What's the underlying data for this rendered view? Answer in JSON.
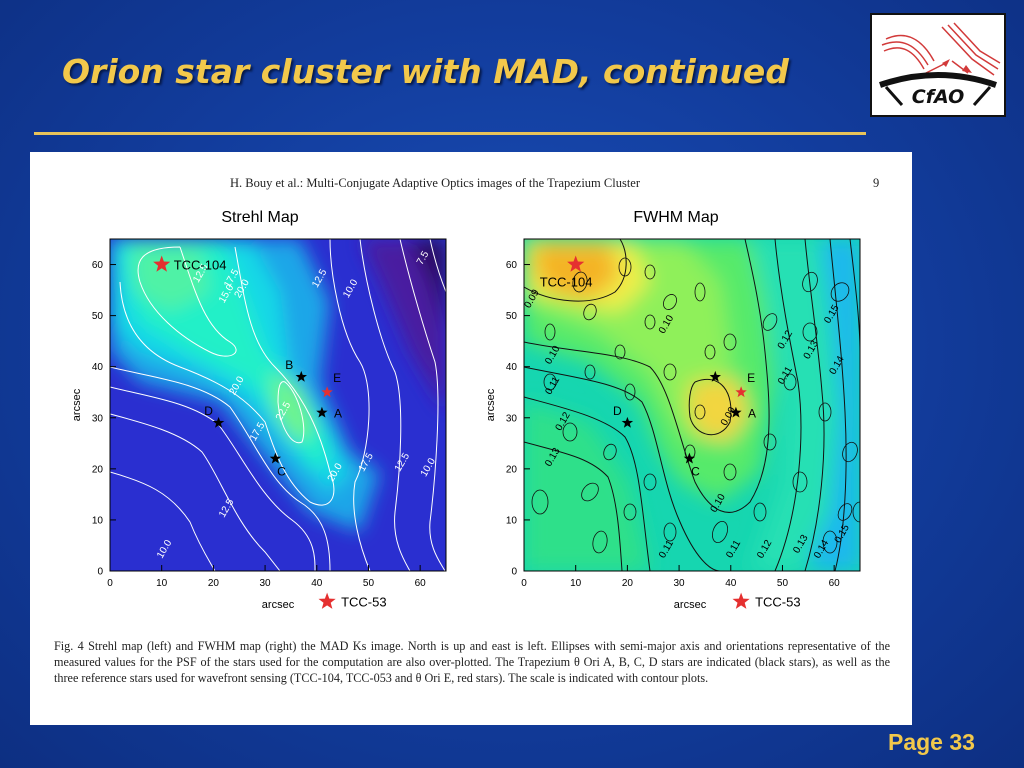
{
  "slide": {
    "title": "Orion star cluster with MAD, continued",
    "page_label": "Page 33",
    "logo_text": "CfAO",
    "title_color": "#f2c84b",
    "background_color": "#123c9c"
  },
  "figure": {
    "header": "H. Bouy et al.: Multi-Conjugate Adaptive Optics images of the Trapezium Cluster",
    "page": "9",
    "caption": "Fig. 4 Strehl map (left) and FWHM map (right) the MAD Ks image. North is up and east is left. Ellipses with semi-major axis and orientations representative of the measured values for the PSF of the stars used for the computation are also over-plotted. The Trapezium θ Ori A, B, C, D stars are indicated (black stars), as well as the three reference stars used for wavefront sensing (TCC-104, TCC-053 and θ Ori E, red stars). The scale is indicated with contour plots."
  },
  "chart_data": [
    {
      "type": "heatmap",
      "title": "Strehl Map",
      "xlabel": "arcsec",
      "ylabel": "arcsec",
      "xlim": [
        0,
        65
      ],
      "ylim": [
        0,
        65
      ],
      "xticks": [
        0,
        10,
        20,
        30,
        40,
        50,
        60
      ],
      "yticks": [
        0,
        10,
        20,
        30,
        40,
        50,
        60
      ],
      "colormap": "blue-cyan-green",
      "contour_levels": [
        {
          "label": "7.5",
          "x": 61,
          "y": 61
        },
        {
          "label": "10.0",
          "x": 47,
          "y": 55
        },
        {
          "label": "12.5",
          "x": 41,
          "y": 57
        },
        {
          "label": "15.0",
          "x": 23,
          "y": 54
        },
        {
          "label": "17.5",
          "x": 24,
          "y": 57
        },
        {
          "label": "20.0",
          "x": 26,
          "y": 55
        },
        {
          "label": "12.5",
          "x": 18,
          "y": 58
        },
        {
          "label": "20.0",
          "x": 25,
          "y": 36
        },
        {
          "label": "22.5",
          "x": 34,
          "y": 31
        },
        {
          "label": "17.5",
          "x": 29,
          "y": 27
        },
        {
          "label": "20.0",
          "x": 44,
          "y": 19
        },
        {
          "label": "17.5",
          "x": 50,
          "y": 21
        },
        {
          "label": "12.5",
          "x": 57,
          "y": 21
        },
        {
          "label": "10.0",
          "x": 62,
          "y": 20
        },
        {
          "label": "12.5",
          "x": 23,
          "y": 12
        },
        {
          "label": "10.0",
          "x": 11,
          "y": 4
        }
      ],
      "markers": [
        {
          "name": "TCC-104",
          "x": 10,
          "y": 60,
          "color": "red"
        },
        {
          "name": "B",
          "x": 37,
          "y": 38,
          "color": "black"
        },
        {
          "name": "E",
          "x": 42,
          "y": 35,
          "color": "red"
        },
        {
          "name": "A",
          "x": 41,
          "y": 31,
          "color": "black"
        },
        {
          "name": "D",
          "x": 21,
          "y": 29,
          "color": "black"
        },
        {
          "name": "C",
          "x": 32,
          "y": 22,
          "color": "black"
        },
        {
          "name": "TCC-53",
          "x": 42,
          "y": -6,
          "color": "red"
        }
      ]
    },
    {
      "type": "heatmap",
      "title": "FWHM Map",
      "xlabel": "arcsec",
      "ylabel": "arcsec",
      "xlim": [
        0,
        65
      ],
      "ylim": [
        0,
        65
      ],
      "xticks": [
        0,
        10,
        20,
        30,
        40,
        50,
        60
      ],
      "yticks": [
        0,
        10,
        20,
        30,
        40,
        50,
        60
      ],
      "colormap": "blue-green-yellow-orange",
      "contour_levels": [
        {
          "label": "0.09",
          "x": 2,
          "y": 53
        },
        {
          "label": "0.10",
          "x": 28,
          "y": 48
        },
        {
          "label": "0.10",
          "x": 6,
          "y": 42
        },
        {
          "label": "0.11",
          "x": 6,
          "y": 36
        },
        {
          "label": "0.12",
          "x": 8,
          "y": 29
        },
        {
          "label": "0.13",
          "x": 6,
          "y": 22
        },
        {
          "label": "0.12",
          "x": 51,
          "y": 45
        },
        {
          "label": "0.13",
          "x": 56,
          "y": 43
        },
        {
          "label": "0.14",
          "x": 61,
          "y": 40
        },
        {
          "label": "0.15",
          "x": 60,
          "y": 50
        },
        {
          "label": "0.11",
          "x": 51,
          "y": 38
        },
        {
          "label": "0.09",
          "x": 40,
          "y": 30
        },
        {
          "label": "0.10",
          "x": 38,
          "y": 13
        },
        {
          "label": "0.11",
          "x": 28,
          "y": 4
        },
        {
          "label": "0.11",
          "x": 41,
          "y": 4
        },
        {
          "label": "0.12",
          "x": 47,
          "y": 4
        },
        {
          "label": "0.13",
          "x": 54,
          "y": 5
        },
        {
          "label": "0.14",
          "x": 58,
          "y": 4
        },
        {
          "label": "0.15",
          "x": 62,
          "y": 7
        }
      ],
      "markers": [
        {
          "name": "TCC-104",
          "x": 10,
          "y": 60,
          "color": "red"
        },
        {
          "name": "",
          "x": 37,
          "y": 38,
          "color": "black"
        },
        {
          "name": "E",
          "x": 42,
          "y": 35,
          "color": "red"
        },
        {
          "name": "A",
          "x": 41,
          "y": 31,
          "color": "black"
        },
        {
          "name": "D",
          "x": 20,
          "y": 29,
          "color": "black"
        },
        {
          "name": "C",
          "x": 32,
          "y": 22,
          "color": "black"
        },
        {
          "name": "TCC-53",
          "x": 42,
          "y": -6,
          "color": "red"
        }
      ]
    }
  ]
}
